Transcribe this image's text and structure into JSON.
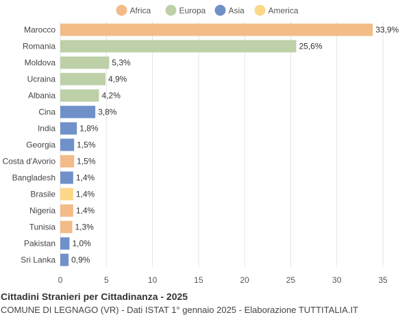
{
  "chart_data": {
    "type": "bar",
    "orientation": "horizontal",
    "title": "Cittadini Stranieri per Cittadinanza - 2025",
    "subtitle": "COMUNE DI LEGNAGO (VR) - Dati ISTAT 1° gennaio 2025 - Elaborazione TUTTITALIA.IT",
    "legend": {
      "placement": "top-center",
      "items": [
        {
          "name": "Africa",
          "color": "#f2bb87"
        },
        {
          "name": "Europa",
          "color": "#bdd0a8"
        },
        {
          "name": "Asia",
          "color": "#7090c9"
        },
        {
          "name": "America",
          "color": "#fdd889"
        }
      ]
    },
    "xlim": [
      0,
      35
    ],
    "xticks": [
      0,
      5,
      10,
      15,
      20,
      25,
      30,
      35
    ],
    "grid": true,
    "categories": [
      "Marocco",
      "Romania",
      "Moldova",
      "Ucraina",
      "Albania",
      "Cina",
      "India",
      "Georgia",
      "Costa d'Avorio",
      "Bangladesh",
      "Brasile",
      "Nigeria",
      "Tunisia",
      "Pakistan",
      "Sri Lanka"
    ],
    "values": [
      33.9,
      25.6,
      5.3,
      4.9,
      4.2,
      3.8,
      1.8,
      1.5,
      1.5,
      1.4,
      1.4,
      1.4,
      1.3,
      1.0,
      0.9
    ],
    "labels": [
      "33,9%",
      "25,6%",
      "5,3%",
      "4,9%",
      "4,2%",
      "3,8%",
      "1,8%",
      "1,5%",
      "1,5%",
      "1,4%",
      "1,4%",
      "1,4%",
      "1,3%",
      "1,0%",
      "0,9%"
    ],
    "groups": [
      "Africa",
      "Europa",
      "Europa",
      "Europa",
      "Europa",
      "Asia",
      "Asia",
      "Asia",
      "Africa",
      "Asia",
      "America",
      "Africa",
      "Africa",
      "Asia",
      "Asia"
    ]
  }
}
